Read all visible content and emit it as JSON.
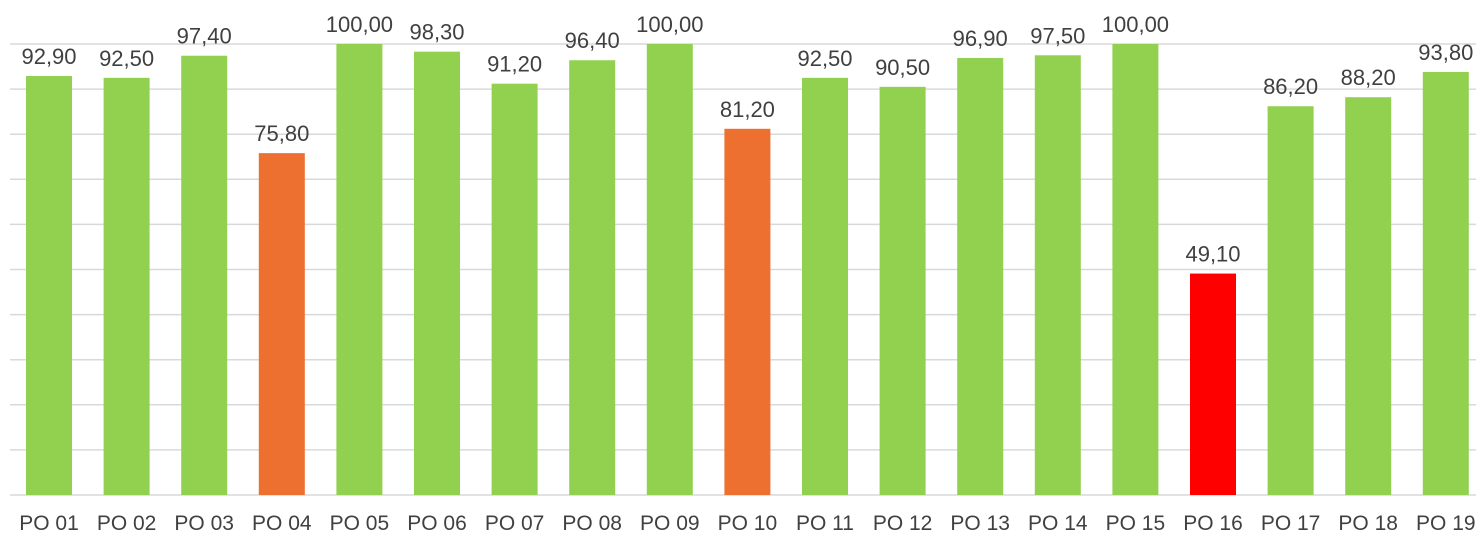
{
  "chart_data": {
    "type": "bar",
    "title": "",
    "xlabel": "",
    "ylabel": "",
    "ylim": [
      0,
      100
    ],
    "grid_step": 10,
    "grid": true,
    "legend": "none",
    "categories": [
      "PO 01",
      "PO 02",
      "PO 03",
      "PO 04",
      "PO 05",
      "PO 06",
      "PO 07",
      "PO 08",
      "PO 09",
      "PO 10",
      "PO 11",
      "PO 12",
      "PO 13",
      "PO 14",
      "PO 15",
      "PO 16",
      "PO 17",
      "PO 18",
      "PO 19"
    ],
    "values": [
      92.9,
      92.5,
      97.4,
      75.8,
      100.0,
      98.3,
      91.2,
      96.4,
      100.0,
      81.2,
      92.5,
      90.5,
      96.9,
      97.5,
      100.0,
      49.1,
      86.2,
      88.2,
      93.8
    ],
    "value_labels": [
      "92,90",
      "92,50",
      "97,40",
      "75,80",
      "100,00",
      "98,30",
      "91,20",
      "96,40",
      "100,00",
      "81,20",
      "92,50",
      "90,50",
      "96,90",
      "97,50",
      "100,00",
      "49,10",
      "86,20",
      "88,20",
      "93,80"
    ],
    "bar_colors": [
      "#92d050",
      "#92d050",
      "#92d050",
      "#ed7031",
      "#92d050",
      "#92d050",
      "#92d050",
      "#92d050",
      "#92d050",
      "#ed7031",
      "#92d050",
      "#92d050",
      "#92d050",
      "#92d050",
      "#92d050",
      "#ff0000",
      "#92d050",
      "#92d050",
      "#92d050"
    ],
    "colors": {
      "green": "#92d050",
      "orange": "#ed7031",
      "red": "#ff0000",
      "grid": "#d9d9d9",
      "text": "#404040"
    }
  }
}
